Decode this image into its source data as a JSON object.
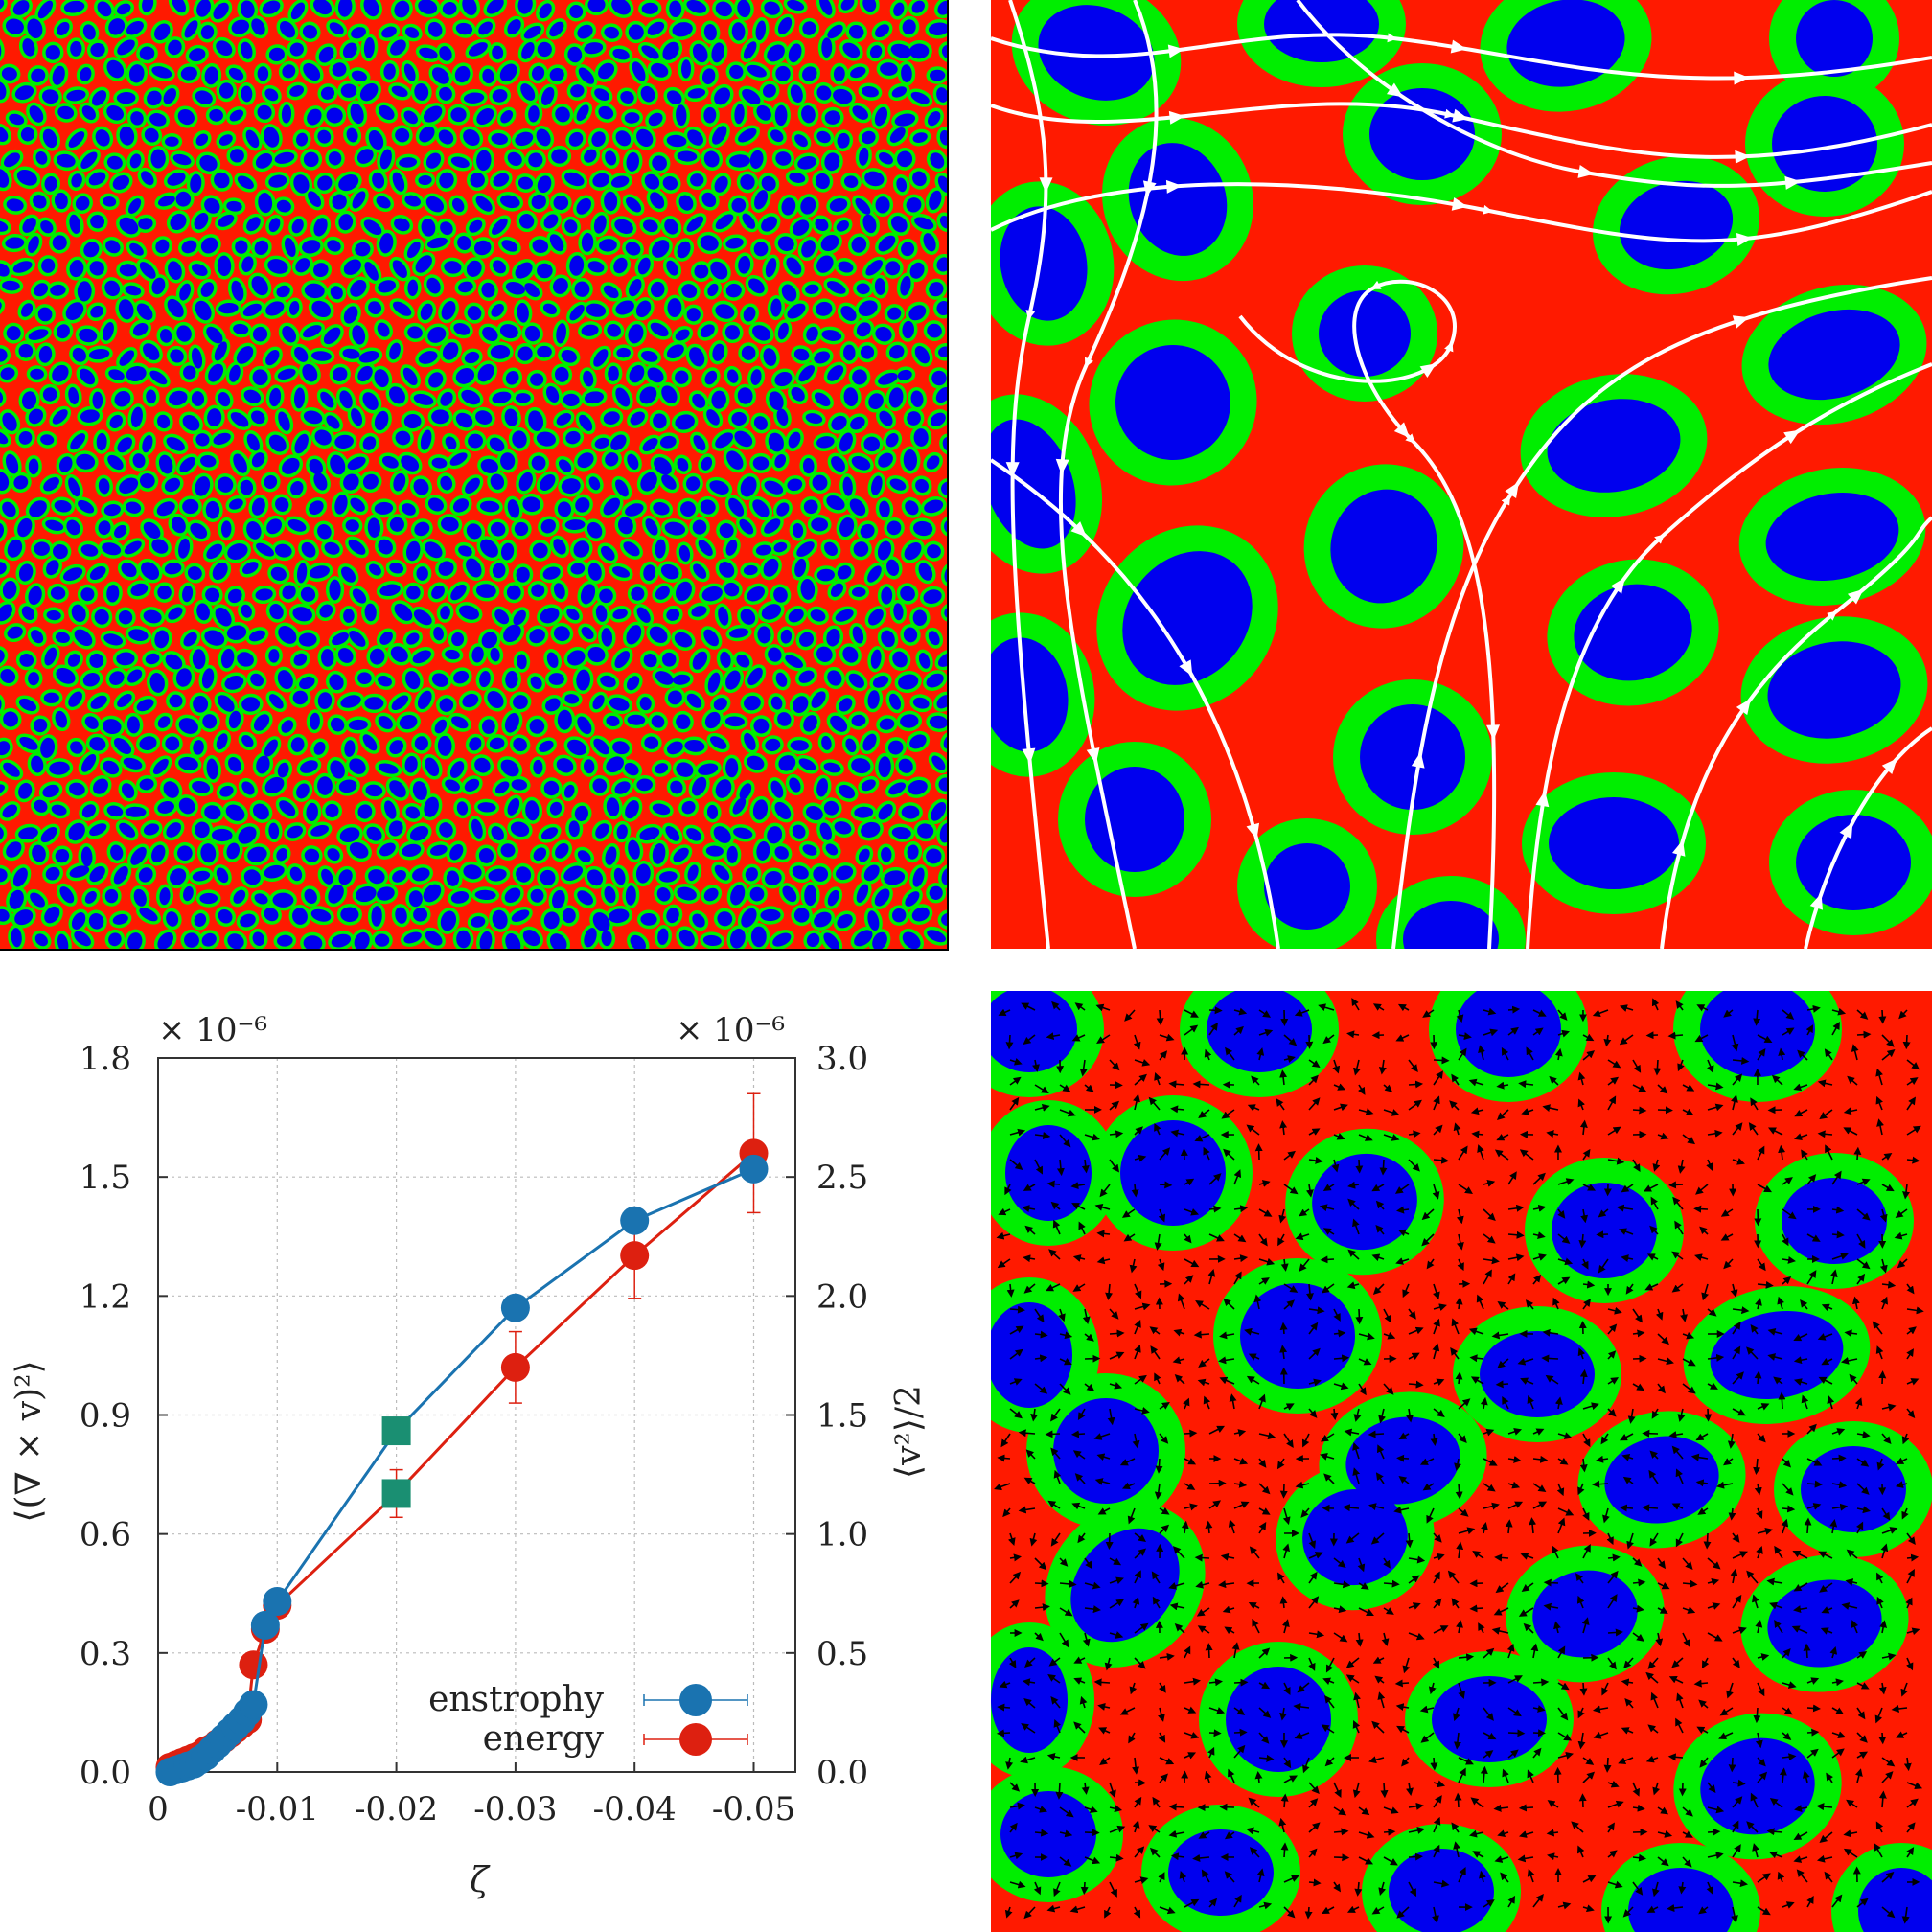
{
  "colors": {
    "matrix": "#ff1a00",
    "shell": "#00ee00",
    "core": "#0000ee",
    "enstrophy": "#1a73b0",
    "energy": "#dd2010",
    "square": "#1a8f72",
    "grid": "#bbbbbb"
  },
  "chart_data": {
    "type": "line",
    "xlabel": "ζ",
    "ylabel_left": "⟨(∇ × v)²⟩",
    "ylabel_right": "⟨v²⟩/2",
    "left_multiplier": "× 10⁻⁶",
    "right_multiplier": "× 10⁻⁶",
    "x_ticks": [
      {
        "value": 0,
        "label": "0"
      },
      {
        "value": -0.01,
        "label": "-0.01"
      },
      {
        "value": -0.02,
        "label": "-0.02"
      },
      {
        "value": -0.03,
        "label": "-0.03"
      },
      {
        "value": -0.04,
        "label": "-0.04"
      },
      {
        "value": -0.05,
        "label": "-0.05"
      }
    ],
    "y_left_ticks": [
      {
        "value": 0.0,
        "label": "0.0"
      },
      {
        "value": 0.3,
        "label": "0.3"
      },
      {
        "value": 0.6,
        "label": "0.6"
      },
      {
        "value": 0.9,
        "label": "0.9"
      },
      {
        "value": 1.2,
        "label": "1.2"
      },
      {
        "value": 1.5,
        "label": "1.5"
      },
      {
        "value": 1.8,
        "label": "1.8"
      }
    ],
    "y_right_ticks": [
      {
        "value": 0.0,
        "label": "0.0"
      },
      {
        "value": 0.5,
        "label": "0.5"
      },
      {
        "value": 1.0,
        "label": "1.0"
      },
      {
        "value": 1.5,
        "label": "1.5"
      },
      {
        "value": 2.0,
        "label": "2.0"
      },
      {
        "value": 2.5,
        "label": "2.5"
      },
      {
        "value": 3.0,
        "label": "3.0"
      }
    ],
    "xlim": [
      0,
      -0.0535
    ],
    "ylim_left": [
      0,
      1.8
    ],
    "ylim_right": [
      0,
      3.0
    ],
    "grid": true,
    "legend_position": "bottom-right",
    "series": [
      {
        "name": "enstrophy",
        "axis": "left",
        "x": [
          -0.001,
          -0.0015,
          -0.002,
          -0.0025,
          -0.003,
          -0.0035,
          -0.004,
          -0.0045,
          -0.005,
          -0.0055,
          -0.006,
          -0.0065,
          -0.007,
          -0.0075,
          -0.008,
          -0.009,
          -0.01,
          -0.02,
          -0.03,
          -0.04,
          -0.05
        ],
        "y": [
          0.0,
          0.005,
          0.01,
          0.015,
          0.02,
          0.03,
          0.04,
          0.055,
          0.07,
          0.085,
          0.1,
          0.115,
          0.13,
          0.15,
          0.17,
          0.37,
          0.43,
          0.86,
          1.17,
          1.39,
          1.52
        ],
        "err": [
          0,
          0,
          0,
          0,
          0,
          0,
          0,
          0,
          0,
          0,
          0,
          0,
          0,
          0,
          0,
          0,
          0,
          0,
          0,
          0,
          0
        ],
        "square_index": 17
      },
      {
        "name": "energy",
        "axis": "right",
        "x": [
          -0.001,
          -0.0015,
          -0.002,
          -0.0025,
          -0.003,
          -0.0035,
          -0.004,
          -0.0045,
          -0.005,
          -0.0055,
          -0.006,
          -0.0065,
          -0.007,
          -0.0075,
          -0.008,
          -0.009,
          -0.01,
          -0.02,
          -0.03,
          -0.04,
          -0.05
        ],
        "y": [
          0.02,
          0.03,
          0.04,
          0.05,
          0.06,
          0.07,
          0.09,
          0.1,
          0.12,
          0.14,
          0.16,
          0.18,
          0.2,
          0.22,
          0.45,
          0.6,
          0.7,
          1.17,
          1.7,
          2.17,
          2.6
        ],
        "err": [
          0,
          0,
          0,
          0,
          0,
          0,
          0,
          0,
          0,
          0,
          0,
          0,
          0,
          0,
          0,
          0,
          0,
          0.1,
          0.15,
          0.18,
          0.25
        ],
        "square_index": 17
      }
    ]
  }
}
